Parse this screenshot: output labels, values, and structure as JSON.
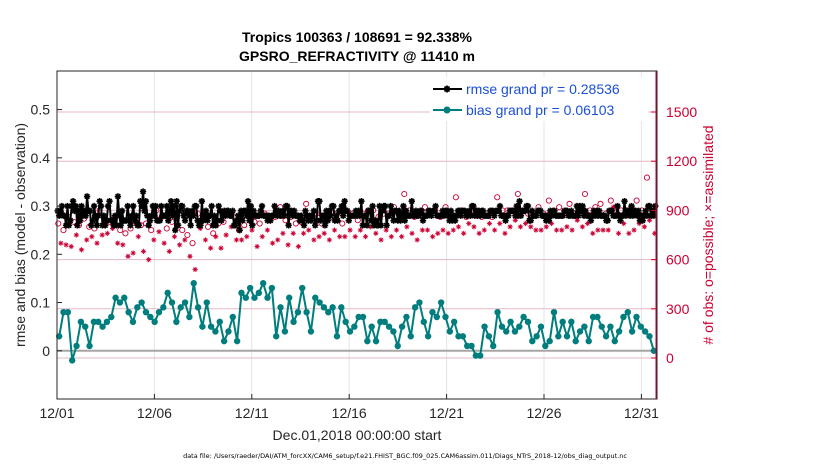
{
  "chart_data": {
    "type": "line",
    "title_line1": "Tropics 100363 / 108691 = 92.338%",
    "title_line2": "GPSRO_REFRACTIVITY @ 11410 m",
    "xlabel": "Dec.01,2018 00:00:00 start",
    "ylabel_left": "rmse and bias (model - observation)",
    "ylabel_right": "# of obs: o=possible; ×=assimilated",
    "footer": "data file: /Users/raeder/DAI/ATM_forcXX/CAM6_setup/f.e21.FHIST_BGC.f09_025.CAM6assim.011/Diags_NTrS_2018-12/obs_diag_output.nc",
    "x_ticks": [
      "12/01",
      "12/06",
      "12/11",
      "12/16",
      "12/21",
      "12/26",
      "12/31"
    ],
    "x_tick_days": [
      0,
      5,
      10,
      15,
      20,
      25,
      30
    ],
    "xlim": [
      0,
      30.75
    ],
    "ylim_left": [
      -0.1,
      0.58
    ],
    "y_ticks_left": [
      "0",
      "0.1",
      "0.2",
      "0.3",
      "0.4",
      "0.5"
    ],
    "y_tick_values_left": [
      0,
      0.1,
      0.2,
      0.3,
      0.4,
      0.5
    ],
    "ylim_right": [
      -250,
      1750
    ],
    "y_ticks_right": [
      "0",
      "300",
      "600",
      "900",
      "1200",
      "1500"
    ],
    "y_tick_values_right": [
      0,
      300,
      600,
      900,
      1200,
      1500
    ],
    "series": [
      {
        "name": "rmse grand pr = 0.28536",
        "color": "#000000",
        "marker": "asterisk",
        "values": [
          0.29,
          0.28,
          0.29,
          0.3,
          0.28,
          0.28,
          0.26,
          0.3,
          0.26,
          0.27,
          0.3,
          0.31,
          0.29,
          0.3,
          0.26,
          0.29,
          0.27,
          0.3,
          0.28,
          0.29,
          0.28,
          0.32,
          0.29,
          0.29,
          0.26,
          0.27,
          0.3,
          0.28,
          0.26,
          0.28,
          0.31,
          0.3,
          0.26,
          0.28,
          0.26,
          0.27,
          0.3,
          0.31,
          0.27,
          0.27,
          0.26,
          0.28,
          0.26,
          0.32,
          0.28,
          0.26,
          0.29,
          0.27,
          0.27,
          0.27,
          0.3,
          0.27,
          0.26,
          0.28,
          0.3,
          0.27,
          0.28,
          0.26,
          0.26,
          0.31,
          0.3,
          0.33,
          0.29,
          0.31,
          0.28,
          0.26,
          0.27,
          0.28,
          0.3,
          0.28,
          0.3,
          0.27,
          0.27,
          0.27,
          0.3,
          0.28,
          0.28,
          0.28,
          0.3,
          0.27,
          0.29,
          0.31,
          0.28,
          0.3,
          0.25,
          0.31,
          0.26,
          0.29,
          0.3,
          0.3,
          0.28,
          0.27,
          0.29,
          0.29,
          0.28,
          0.26,
          0.29,
          0.28,
          0.3,
          0.3,
          0.27,
          0.26,
          0.26,
          0.31,
          0.27,
          0.28,
          0.29,
          0.27,
          0.28,
          0.28,
          0.3,
          0.26,
          0.28,
          0.26,
          0.27,
          0.3,
          0.29,
          0.27,
          0.28,
          0.29,
          0.28,
          0.29,
          0.29,
          0.28,
          0.28,
          0.29,
          0.26,
          0.26,
          0.27,
          0.28,
          0.25,
          0.29,
          0.27,
          0.29,
          0.29,
          0.28,
          0.31,
          0.27,
          0.3,
          0.26,
          0.29,
          0.28,
          0.28,
          0.28,
          0.28,
          0.29,
          0.3,
          0.28,
          0.28,
          0.28,
          0.27,
          0.28,
          0.27,
          0.28,
          0.28,
          0.3,
          0.29,
          0.28,
          0.29,
          0.28,
          0.28,
          0.29,
          0.28,
          0.3,
          0.3,
          0.26,
          0.29,
          0.29,
          0.28,
          0.29,
          0.28,
          0.28,
          0.28,
          0.27,
          0.28,
          0.27,
          0.26,
          0.29,
          0.28,
          0.27,
          0.28,
          0.27,
          0.28,
          0.29,
          0.26,
          0.27,
          0.31,
          0.31,
          0.27,
          0.28,
          0.28,
          0.26,
          0.29,
          0.27,
          0.29,
          0.28,
          0.3,
          0.3,
          0.27,
          0.28,
          0.27,
          0.29,
          0.29,
          0.3,
          0.28,
          0.31,
          0.29,
          0.29,
          0.27,
          0.28,
          0.28,
          0.28,
          0.28,
          0.29,
          0.28,
          0.29,
          0.28,
          0.31,
          0.26,
          0.28,
          0.28,
          0.26,
          0.29,
          0.29,
          0.27,
          0.3,
          0.26,
          0.27,
          0.26,
          0.26,
          0.3,
          0.26,
          0.29,
          0.3,
          0.3,
          0.26,
          0.28,
          0.28,
          0.3,
          0.29,
          0.27,
          0.29,
          0.29,
          0.27,
          0.29,
          0.27,
          0.28,
          0.3,
          0.27,
          0.29,
          0.28,
          0.28,
          0.28,
          0.31,
          0.28,
          0.28,
          0.29,
          0.28,
          0.28,
          0.29,
          0.29,
          0.27,
          0.28,
          0.28,
          0.28,
          0.29,
          0.29,
          0.28,
          0.29,
          0.29,
          0.3,
          0.28,
          0.28,
          0.28,
          0.28,
          0.29,
          0.28,
          0.29,
          0.29,
          0.28,
          0.27,
          0.29,
          0.27,
          0.28,
          0.27,
          0.28,
          0.29,
          0.29,
          0.28,
          0.29,
          0.29,
          0.29,
          0.28,
          0.28,
          0.29,
          0.28,
          0.3,
          0.3,
          0.28,
          0.29,
          0.28,
          0.29,
          0.28,
          0.29,
          0.29,
          0.28,
          0.28,
          0.28,
          0.28,
          0.29,
          0.29,
          0.29,
          0.28,
          0.29,
          0.29,
          0.29,
          0.3,
          0.28,
          0.28,
          0.28,
          0.27,
          0.28,
          0.28,
          0.29,
          0.29,
          0.29,
          0.29,
          0.28,
          0.3,
          0.28,
          0.31,
          0.28,
          0.29,
          0.29,
          0.29,
          0.3,
          0.3,
          0.27,
          0.27,
          0.29,
          0.28,
          0.28,
          0.28,
          0.29,
          0.29,
          0.29,
          0.28,
          0.28,
          0.28,
          0.27,
          0.28,
          0.27,
          0.29,
          0.28,
          0.29,
          0.29,
          0.28,
          0.28,
          0.28,
          0.28,
          0.28,
          0.28,
          0.29,
          0.29,
          0.29,
          0.28,
          0.28,
          0.29,
          0.28,
          0.28,
          0.28,
          0.3,
          0.28,
          0.3,
          0.29,
          0.3,
          0.28,
          0.29,
          0.28,
          0.28,
          0.28,
          0.27,
          0.28,
          0.29,
          0.28,
          0.29,
          0.28,
          0.29,
          0.28,
          0.28,
          0.28,
          0.28,
          0.27,
          0.27,
          0.29,
          0.29,
          0.29,
          0.28,
          0.28,
          0.28,
          0.3,
          0.28,
          0.27,
          0.28,
          0.28,
          0.31,
          0.28,
          0.29,
          0.29,
          0.28,
          0.3,
          0.28,
          0.29,
          0.29,
          0.28,
          0.29,
          0.27,
          0.28,
          0.27,
          0.28,
          0.29,
          0.28,
          0.3,
          0.3,
          0.28,
          0.29,
          0.28,
          0.3
        ]
      },
      {
        "name": "bias grand pr = 0.06103",
        "color": "#007d7d",
        "marker": "circle",
        "values": [
          0.03,
          0.08,
          0.08,
          -0.02,
          0.01,
          0.06,
          0.05,
          0.01,
          0.06,
          0.06,
          0.05,
          0.06,
          0.07,
          0.11,
          0.1,
          0.11,
          0.08,
          0.06,
          0.09,
          0.1,
          0.08,
          0.07,
          0.06,
          0.08,
          0.09,
          0.12,
          0.1,
          0.06,
          0.09,
          0.1,
          0.07,
          0.14,
          0.09,
          0.05,
          0.1,
          0.05,
          0.04,
          0.06,
          0.02,
          0.04,
          0.07,
          0.02,
          0.12,
          0.11,
          0.13,
          0.11,
          0.12,
          0.14,
          0.11,
          0.13,
          0.03,
          0.09,
          0.04,
          0.11,
          0.06,
          0.08,
          0.13,
          0.08,
          0.04,
          0.11,
          0.1,
          0.09,
          0.08,
          0.09,
          0.03,
          0.09,
          0.06,
          0.04,
          0.05,
          0.07,
          0.07,
          0.02,
          0.05,
          0.02,
          0.06,
          0.06,
          0.05,
          0.04,
          0.01,
          0.05,
          0.07,
          0.03,
          0.09,
          0.1,
          0.06,
          0.03,
          0.08,
          0.07,
          0.1,
          0.07,
          0.04,
          0.06,
          0.03,
          0.03,
          0.01,
          0.01,
          -0.01,
          -0.01,
          0.05,
          0.03,
          0.01,
          0.08,
          0.05,
          0.04,
          0.06,
          0.04,
          0.05,
          0.07,
          0.06,
          0.02,
          0.03,
          0.05,
          0.01,
          0.02,
          0.08,
          0.03,
          0.06,
          0.03,
          0.06,
          0.02,
          0.04,
          0.05,
          0.02,
          0.07,
          0.07,
          0.05,
          0.03,
          0.05,
          0.02,
          0.04,
          0.07,
          0.08,
          0.04,
          0.07,
          0.05,
          0.04,
          0.03,
          0.0
        ]
      }
    ],
    "possible_counts": [
      820,
      840,
      780,
      800,
      860,
      790,
      830,
      880,
      810,
      770,
      850,
      840,
      800,
      860,
      790,
      820,
      900,
      870,
      840,
      880,
      830,
      910,
      860,
      820,
      780,
      800,
      760,
      720,
      790,
      740,
      830,
      860,
      810,
      750,
      820,
      700,
      780,
      840,
      900,
      880,
      860,
      820,
      790,
      760,
      830,
      860,
      870,
      800,
      780,
      840,
      750,
      720,
      700,
      650,
      880,
      910,
      860,
      830,
      800,
      780,
      760,
      860,
      820,
      780,
      830,
      870,
      890,
      920,
      860,
      830,
      780,
      840,
      810,
      860,
      880,
      900,
      830,
      790,
      820,
      860,
      880,
      900,
      850,
      810,
      860,
      840,
      920,
      880,
      840,
      800,
      860,
      880,
      820,
      790,
      830,
      880,
      940,
      900,
      860,
      830,
      880,
      860,
      820,
      880,
      850,
      840,
      860,
      900,
      880,
      860,
      820,
      860,
      880,
      900,
      880,
      860,
      840,
      900,
      880,
      860,
      900,
      920,
      900,
      880,
      860,
      840,
      880,
      900,
      880,
      860,
      920,
      900,
      880,
      860,
      1000,
      920,
      900,
      880,
      860,
      840,
      880,
      900,
      920,
      900,
      880,
      860,
      900,
      880,
      860,
      900,
      920,
      880,
      860,
      900,
      980,
      920,
      900,
      880,
      860,
      940,
      900,
      920,
      900,
      880,
      860,
      900,
      880,
      940,
      860,
      900,
      980,
      940,
      900,
      880,
      900,
      920,
      900,
      960,
      1000,
      920,
      900,
      940,
      880,
      920,
      880,
      900,
      920,
      900,
      880,
      920,
      960,
      940,
      880,
      900,
      920,
      900,
      880,
      920,
      940,
      900,
      880,
      960,
      900,
      920,
      1000,
      940,
      900,
      880,
      920,
      900,
      940,
      900,
      880,
      900,
      960,
      1050,
      920,
      880,
      900,
      940,
      900,
      880,
      920,
      900,
      960,
      940,
      900,
      920,
      1100,
      960,
      900,
      880
    ],
    "assimilated_counts": [
      720,
      700,
      660,
      690,
      740,
      680,
      720,
      750,
      700,
      660,
      730,
      720,
      690,
      740,
      680,
      700,
      780,
      750,
      720,
      760,
      710,
      790,
      740,
      700,
      660,
      690,
      650,
      620,
      680,
      640,
      720,
      740,
      700,
      650,
      710,
      600,
      670,
      720,
      790,
      770,
      740,
      700,
      680,
      650,
      720,
      740,
      760,
      690,
      670,
      720,
      640,
      620,
      600,
      540,
      760,
      790,
      740,
      720,
      690,
      670,
      650,
      740,
      700,
      670,
      720,
      750,
      770,
      800,
      740,
      720,
      670,
      720,
      700,
      740,
      760,
      780,
      720,
      680,
      700,
      740,
      760,
      780,
      730,
      700,
      740,
      720,
      800,
      760,
      720,
      690,
      740,
      760,
      700,
      680,
      720,
      760,
      820,
      780,
      740,
      720,
      760,
      740,
      700,
      760,
      730,
      720,
      740,
      780,
      760,
      740,
      700,
      740,
      760,
      780,
      760,
      740,
      720,
      780,
      760,
      740,
      780,
      800,
      780,
      760,
      740,
      720,
      760,
      780,
      760,
      740,
      800,
      780,
      760,
      740,
      860,
      800,
      780,
      760,
      740,
      720,
      760,
      780,
      800,
      780,
      760,
      740,
      780,
      760,
      740,
      780,
      800,
      760,
      740,
      780,
      860,
      800,
      780,
      760,
      740,
      820,
      780,
      800,
      780,
      760,
      740,
      780,
      760,
      820,
      740,
      780,
      860,
      820,
      780,
      760,
      780,
      800,
      780,
      840,
      880,
      800,
      780,
      820,
      760,
      800,
      760,
      780,
      800,
      780,
      760,
      800,
      840,
      820,
      760,
      780,
      800,
      780,
      760,
      800,
      820,
      780,
      760,
      840,
      780,
      800,
      880,
      820,
      780,
      760,
      800,
      780,
      820,
      780,
      760,
      780,
      840,
      920,
      800,
      760,
      780,
      820,
      780,
      760,
      800,
      780,
      840,
      820,
      780,
      800,
      960,
      840,
      780,
      760
    ],
    "legend_position": "top-right",
    "grid": true,
    "colors": {
      "rmse": "#000000",
      "bias": "#007d7d",
      "counts": "#cc0033",
      "zero_line": "#a6a6a6",
      "grid": "#e6b8c4",
      "legend_text": "#1a4fd6"
    }
  }
}
